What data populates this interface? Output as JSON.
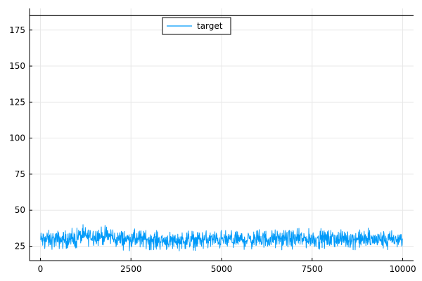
{
  "chart_data": {
    "type": "line",
    "title": "",
    "xlabel": "",
    "ylabel": "",
    "xlim": [
      -300,
      10300
    ],
    "ylim": [
      15,
      190
    ],
    "x_ticks": [
      0,
      2500,
      5000,
      7500,
      10000
    ],
    "y_ticks": [
      25,
      50,
      75,
      100,
      125,
      150,
      175
    ],
    "grid": true,
    "legend_position": "top-center",
    "series": [
      {
        "name": "target",
        "color": "#009af9",
        "n_points": 10000,
        "mean": 30,
        "min": 20,
        "max": 40,
        "summary_by_interval": [
          {
            "x": [
              0,
              1000
            ],
            "mean": 29.5
          },
          {
            "x": [
              1000,
              2000
            ],
            "mean": 32
          },
          {
            "x": [
              2000,
              3000
            ],
            "mean": 30
          },
          {
            "x": [
              3000,
              4000
            ],
            "mean": 29
          },
          {
            "x": [
              4000,
              5000
            ],
            "mean": 29.5
          },
          {
            "x": [
              5000,
              6000
            ],
            "mean": 29.5
          },
          {
            "x": [
              6000,
              7000
            ],
            "mean": 30
          },
          {
            "x": [
              7000,
              8000
            ],
            "mean": 30
          },
          {
            "x": [
              8000,
              9000
            ],
            "mean": 30
          },
          {
            "x": [
              9000,
              10000
            ],
            "mean": 29.5
          }
        ]
      }
    ],
    "reference_lines": [
      {
        "orientation": "horizontal",
        "y": 185,
        "color": "#000000"
      }
    ]
  }
}
